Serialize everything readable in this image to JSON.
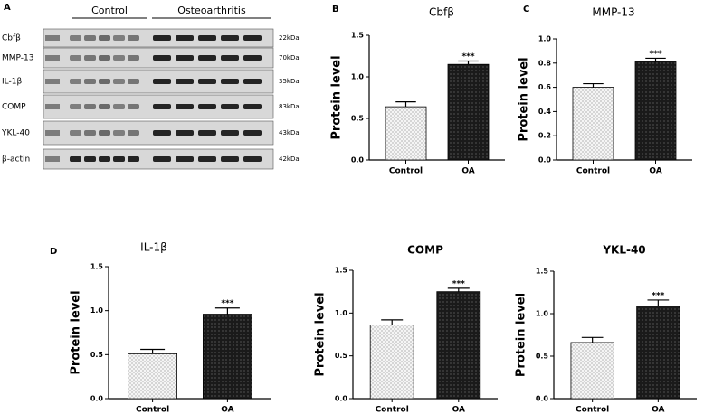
{
  "blot": {
    "label": "A",
    "groups": [
      "Control",
      "Osteoarthritis"
    ],
    "rows": [
      {
        "protein": "Cbfβ",
        "size": "22kDa"
      },
      {
        "protein": "MMP-13",
        "size": "70kDa"
      },
      {
        "protein": "IL-1β",
        "size": "35kDa"
      },
      {
        "protein": "COMP",
        "size": "83kDa"
      },
      {
        "protein": "YKL-40",
        "size": "43kDa"
      },
      {
        "protein": "β-actin",
        "size": "42kDa"
      }
    ]
  },
  "chart_data": [
    {
      "label": "B",
      "type": "bar",
      "title": "Cbfβ",
      "title_bold": false,
      "ylabel": "Protein level",
      "categories": [
        "Control",
        "OA"
      ],
      "values": [
        0.64,
        1.15
      ],
      "errors": [
        0.06,
        0.04
      ],
      "annotation": "***",
      "colors": [
        "#cfcfcf",
        "#1a1a1a"
      ],
      "ylim": [
        0,
        1.5
      ],
      "yticks": [
        {
          "value": 0,
          "label": "0.0"
        },
        0.5,
        {
          "value": 1,
          "label": "1.0"
        },
        1.5
      ]
    },
    {
      "label": "C",
      "type": "bar",
      "title": "MMP-13",
      "title_bold": false,
      "ylabel": "Protein level",
      "categories": [
        "Control",
        "OA"
      ],
      "values": [
        0.6,
        0.81
      ],
      "errors": [
        0.03,
        0.03
      ],
      "annotation": "***",
      "colors": [
        "#cfcfcf",
        "#1a1a1a"
      ],
      "ylim": [
        0,
        1.0
      ],
      "yticks": [
        {
          "value": 0,
          "label": "0.0"
        },
        0.2,
        0.4,
        0.6,
        0.8,
        {
          "value": 1,
          "label": "1.0"
        }
      ]
    },
    {
      "label": "D",
      "type": "bar",
      "title": "IL-1β",
      "title_bold": false,
      "ylabel": "Protein level",
      "categories": [
        "Control",
        "OA"
      ],
      "values": [
        0.51,
        0.96
      ],
      "errors": [
        0.05,
        0.07
      ],
      "annotation": "***",
      "colors": [
        "#cfcfcf",
        "#1a1a1a"
      ],
      "ylim": [
        0,
        1.5
      ],
      "yticks": [
        {
          "value": 0,
          "label": "0.0"
        },
        0.5,
        {
          "value": 1,
          "label": "1.0"
        },
        1.5
      ]
    },
    {
      "type": "bar",
      "title": "COMP",
      "title_bold": true,
      "ylabel": "Protein level",
      "categories": [
        "Control",
        "OA"
      ],
      "values": [
        0.86,
        1.25
      ],
      "errors": [
        0.06,
        0.04
      ],
      "annotation": "***",
      "colors": [
        "#cfcfcf",
        "#1a1a1a"
      ],
      "ylim": [
        0,
        1.5
      ],
      "yticks": [
        {
          "value": 0,
          "label": "0.0"
        },
        0.5,
        {
          "value": 1,
          "label": "1.0"
        },
        1.5
      ]
    },
    {
      "type": "bar",
      "title": "YKL-40",
      "title_bold": true,
      "ylabel": "Protein level",
      "categories": [
        "Control",
        "OA"
      ],
      "values": [
        0.66,
        1.09
      ],
      "errors": [
        0.06,
        0.07
      ],
      "annotation": "***",
      "colors": [
        "#cfcfcf",
        "#1a1a1a"
      ],
      "ylim": [
        0,
        1.5
      ],
      "yticks": [
        {
          "value": 0,
          "label": "0.0"
        },
        0.5,
        {
          "value": 1,
          "label": "1.0"
        },
        1.5
      ]
    }
  ]
}
